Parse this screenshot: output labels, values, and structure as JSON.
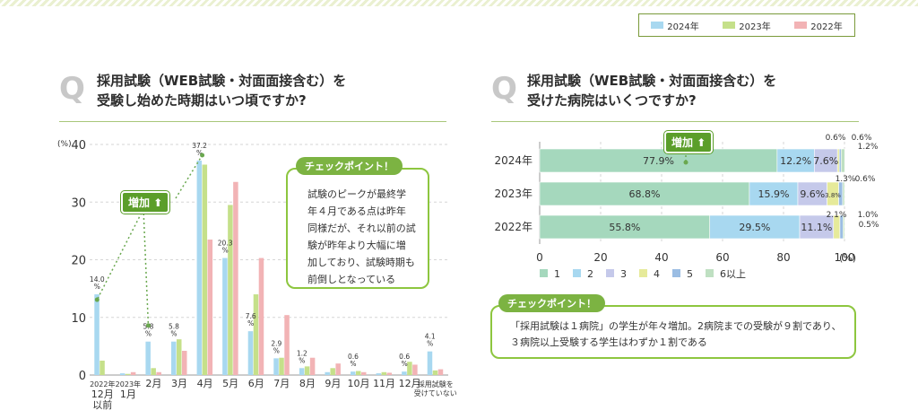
{
  "legend": [
    {
      "label": "2024年",
      "color": "#a8d8f0"
    },
    {
      "label": "2023年",
      "color": "#c5e08a"
    },
    {
      "label": "2022年",
      "color": "#f2b3b5"
    }
  ],
  "left": {
    "q_letter": "Q",
    "title_line1": "採用試験（WEB試験・対面面接含む）を",
    "title_line2": "受験し始めた時期はいつ頃ですか?",
    "badge": "増加",
    "checkpoint_tag": "チェックポイント！",
    "checkpoint_text": [
      "試験のピークが最終学",
      "年４月である点は昨年",
      "同様だが、それ以前の試",
      "験が昨年より大幅に増",
      "加しており、試験時期も",
      "前倒しとなっている"
    ]
  },
  "right": {
    "q_letter": "Q",
    "title_line1": "採用試験（WEB試験・対面面接含む）を",
    "title_line2": "受けた病院はいくつですか?",
    "badge": "増加",
    "checkpoint_tag": "チェックポイント！",
    "checkpoint_text": [
      "「採用試験は１病院」の学生が年々増加。2病院までの受験が９割であり、",
      "３病院以上受験する学生はわずか１割である"
    ]
  },
  "chart_data": [
    {
      "type": "bar",
      "ylabel": "(%)",
      "ylim": [
        0,
        40
      ],
      "yticks": [
        0,
        10,
        20,
        30,
        40
      ],
      "categories": [
        [
          "2022年",
          "12月",
          "以前"
        ],
        [
          "2023年",
          "1月"
        ],
        [
          "2月"
        ],
        [
          "3月"
        ],
        [
          "4月"
        ],
        [
          "5月"
        ],
        [
          "6月"
        ],
        [
          "7月"
        ],
        [
          "8月"
        ],
        [
          "9月"
        ],
        [
          "10月"
        ],
        [
          "11月"
        ],
        [
          "12月"
        ],
        [
          "採用試験を",
          "受けていない"
        ]
      ],
      "series": [
        {
          "name": "2024年",
          "color": "#a8d8f0",
          "values": [
            14.0,
            0.3,
            5.8,
            5.8,
            37.2,
            20.3,
            7.6,
            2.9,
            1.2,
            0.5,
            0.6,
            0.3,
            0.6,
            4.1
          ]
        },
        {
          "name": "2023年",
          "color": "#c5e08a",
          "values": [
            2.5,
            0.2,
            1.2,
            6.2,
            36.5,
            29.5,
            14.0,
            3.0,
            1.5,
            1.2,
            0.7,
            0.5,
            2.3,
            0.8
          ]
        },
        {
          "name": "2022年",
          "color": "#f2b3b5",
          "values": [
            0.0,
            0.5,
            0.5,
            4.2,
            23.5,
            33.5,
            20.3,
            10.4,
            3.0,
            2.0,
            0.5,
            0.4,
            1.8,
            1.0
          ]
        }
      ],
      "data_labels": [
        {
          "category_index": 0,
          "text": "14.0\n%"
        },
        {
          "category_index": 2,
          "text": "5.8\n%"
        },
        {
          "category_index": 3,
          "text": "5.8\n%"
        },
        {
          "category_index": 4,
          "text": "37.2\n%"
        },
        {
          "category_index": 5,
          "text": "20.3\n%"
        },
        {
          "category_index": 6,
          "text": "7.6\n%"
        },
        {
          "category_index": 7,
          "text": "2.9\n%"
        },
        {
          "category_index": 8,
          "text": "1.2\n%"
        },
        {
          "category_index": 10,
          "text": "0.6\n%"
        },
        {
          "category_index": 12,
          "text": "0.6\n%"
        },
        {
          "category_index": 13,
          "text": "4.1\n%"
        }
      ],
      "grid": true
    },
    {
      "type": "bar",
      "orientation": "horizontal",
      "stacked": true,
      "categories": [
        "2024年",
        "2023年",
        "2022年"
      ],
      "xlim": [
        0,
        100
      ],
      "xticks": [
        0,
        20,
        40,
        60,
        80,
        100
      ],
      "xlabel": "(%)",
      "series": [
        {
          "name": "1",
          "color": "#a5d8bd",
          "values": [
            77.9,
            68.8,
            55.8
          ]
        },
        {
          "name": "2",
          "color": "#a8d8f0",
          "values": [
            12.2,
            15.9,
            29.5
          ]
        },
        {
          "name": "3",
          "color": "#c5c9ea",
          "values": [
            7.6,
            9.6,
            11.1
          ]
        },
        {
          "name": "4",
          "color": "#e6ea9a",
          "values": [
            0.6,
            3.8,
            2.1
          ]
        },
        {
          "name": "5",
          "color": "#9bbde3",
          "values": [
            0.6,
            1.3,
            1.0
          ]
        },
        {
          "name": "6以上",
          "color": "#bfe0c2",
          "values": [
            1.2,
            0.6,
            0.5
          ]
        }
      ],
      "inline_labels": [
        [
          "77.9%",
          "12.2%",
          "7.6%",
          "",
          "",
          ""
        ],
        [
          "68.8%",
          "15.9%",
          "9.6%",
          "3.8%",
          "",
          ""
        ],
        [
          "55.8%",
          "29.5%",
          "11.1%",
          "",
          "",
          ""
        ]
      ],
      "callout_labels": [
        [
          "0.6%",
          "0.6%",
          "1.2%"
        ],
        [
          "1.3%",
          "0.6%"
        ],
        [
          "2.1%",
          "1.0%",
          "0.5%"
        ]
      ],
      "grid": true
    }
  ]
}
